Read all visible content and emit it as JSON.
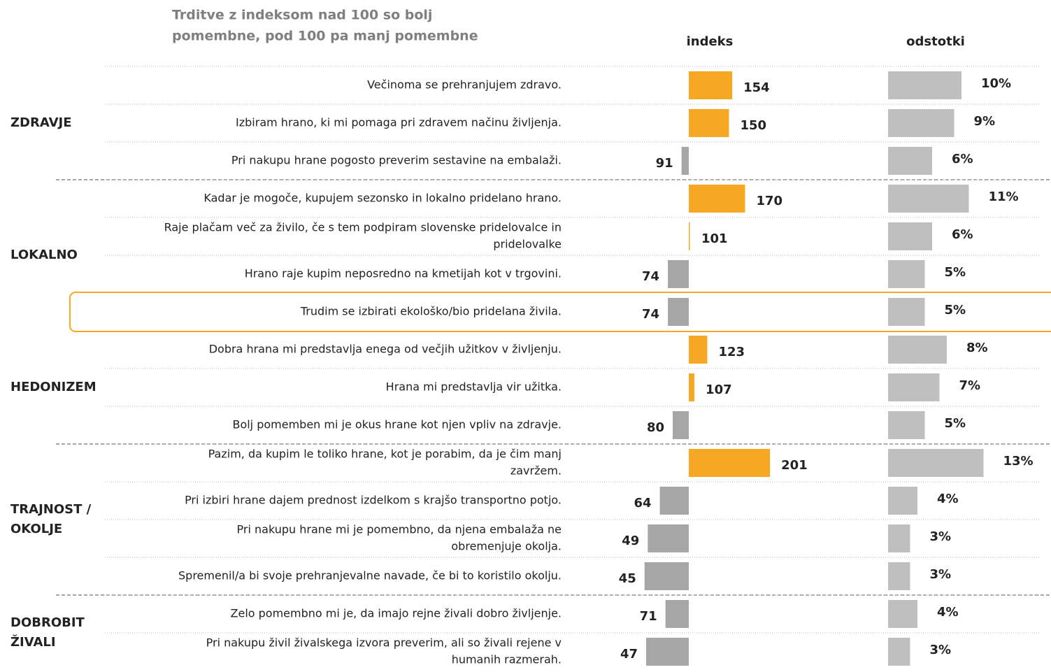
{
  "chart_data": {
    "type": "bar",
    "orientation": "horizontal",
    "title": [
      "Trditve z indeksom nad 100 so bolj",
      "pomembne, pod 100 pa manj pomembne"
    ],
    "categories": [
      [
        "Večinoma se prehranjujem zdravo."
      ],
      [
        "Izbiram hrano, ki mi pomaga pri zdravem načinu življenja."
      ],
      [
        "Pri nakupu hrane pogosto preverim sestavine na embalaži."
      ],
      [
        "Kadar je mogoče, kupujem sezonsko in lokalno pridelano hrano."
      ],
      [
        "Raje plačam več za živilo, če s tem podpiram slovenske pridelovalce in",
        "pridelovalke"
      ],
      [
        "Hrano raje kupim neposredno na kmetijah kot v trgovini."
      ],
      [
        "Trudim se izbirati ekološko/bio pridelana živila."
      ],
      [
        "Dobra hrana mi predstavlja enega od večjih užitkov v življenju."
      ],
      [
        "Hrana mi predstavlja vir užitka."
      ],
      [
        "Bolj pomemben mi je okus hrane kot njen vpliv na zdravje."
      ],
      [
        "Pazim, da kupim le toliko hrane, kot je porabim, da je čim manj",
        "zavržem."
      ],
      [
        "Pri izbiri hrane dajem prednost izdelkom s krajšo transportno potjo."
      ],
      [
        "Pri nakupu hrane mi je pomembno, da njena embalaža ne",
        "obremenjuje okolja."
      ],
      [
        "Spremenil/a bi svoje prehranjevalne navade, če bi to koristilo okolju."
      ],
      [
        "Zelo pomembno mi je, da imajo rejne živali dobro življenje."
      ],
      [
        "Pri nakupu živil živalskega izvora preverim, ali so živali rejene v",
        "humanih razmerah."
      ]
    ],
    "groups": [
      {
        "lines": [
          "ZDRAVJE"
        ],
        "count": 3
      },
      {
        "lines": [
          "LOKALNO"
        ],
        "count": 4
      },
      {
        "lines": [
          "HEDONIZEM"
        ],
        "count": 3
      },
      {
        "lines": [
          "TRAJNOST /",
          "OKOLJE"
        ],
        "count": 4
      },
      {
        "lines": [
          "DOBROBIT",
          "ŽIVALI"
        ],
        "count": 2
      }
    ],
    "highlight": 6,
    "series": [
      {
        "name": "indeks",
        "baseline": 100,
        "color_above": "#f7a823",
        "color_below": "#a6a6a6",
        "values": [
          154,
          150,
          91,
          170,
          101,
          74,
          74,
          123,
          107,
          80,
          201,
          64,
          49,
          45,
          71,
          47
        ]
      },
      {
        "name": "odstotki",
        "color": "#bfbfbf",
        "values": [
          10,
          9,
          6,
          11,
          6,
          5,
          5,
          8,
          7,
          5,
          13,
          4,
          3,
          3,
          4,
          3
        ],
        "value_labels": [
          "10%",
          "9%",
          "6%",
          "11%",
          "6%",
          "5%",
          "5%",
          "8%",
          "7%",
          "5%",
          "13%",
          "4%",
          "3%",
          "3%",
          "4%",
          "3%"
        ]
      }
    ]
  }
}
